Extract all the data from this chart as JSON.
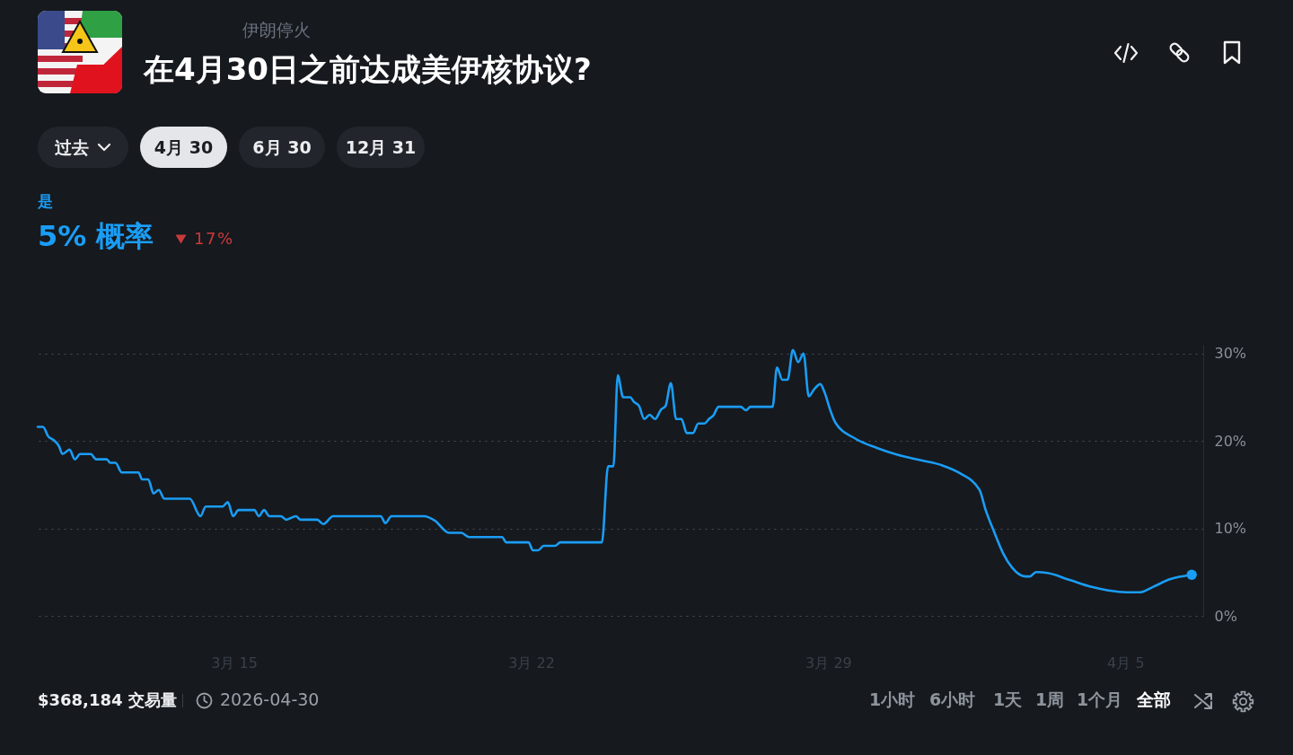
{
  "chart_data": {
    "type": "line",
    "title": "在4月30日之前达成美伊核协议?",
    "annotations": [
      "伊朗停火",
      "过去",
      "4月 30",
      "6月 30",
      "12月 31",
      "是",
      "5% 概率",
      "17%",
      "$368,184 交易量",
      "2026-04-30",
      "1小时",
      "6小时",
      "1天",
      "1周",
      "1个月",
      "全部"
    ],
    "xlim": [
      "2026-03-10T09:00",
      "2026-04-06T20:00"
    ],
    "xticks": [
      {
        "value": "2026-03-15",
        "label": "3月 15"
      },
      {
        "value": "2026-03-22",
        "label": "3月 22"
      },
      {
        "value": "2026-03-29",
        "label": "3月 29"
      },
      {
        "value": "2026-04-05",
        "label": "4月 5"
      }
    ],
    "ylim": [
      0,
      31
    ],
    "yticks": [
      {
        "value": 0,
        "label": "0%"
      },
      {
        "value": 10,
        "label": "10%"
      },
      {
        "value": 20,
        "label": "20%"
      },
      {
        "value": 30,
        "label": "30%"
      }
    ],
    "grid": "y",
    "series": [
      {
        "color": "#1a9df5",
        "x": [
          "2026-03-10T09:00",
          "2026-03-10T12:00",
          "2026-03-10T15:00",
          "2026-03-10T18:00",
          "2026-03-10T21:00",
          "2026-03-10T23:00",
          "2026-03-11T03:00",
          "2026-03-11T06:00",
          "2026-03-11T09:00",
          "2026-03-11T15:00",
          "2026-03-11T18:00",
          "2026-03-12T00:00",
          "2026-03-12T02:00",
          "2026-03-12T05:00",
          "2026-03-12T08:30",
          "2026-03-12T18:00",
          "2026-03-12T20:00",
          "2026-03-12T23:30",
          "2026-03-13T02:30",
          "2026-03-13T05:30",
          "2026-03-13T08:30",
          "2026-03-13T23:00",
          "2026-03-14T05:00",
          "2026-03-14T08:00",
          "2026-03-14T17:30",
          "2026-03-14T20:30",
          "2026-03-14T23:30",
          "2026-03-15T02:30",
          "2026-03-15T11:30",
          "2026-03-15T14:00",
          "2026-03-15T17:00",
          "2026-03-15T20:00",
          "2026-03-16T02:30",
          "2026-03-16T05:30",
          "2026-03-16T11:00",
          "2026-03-16T13:30",
          "2026-03-16T23:00",
          "2026-03-17T02:30",
          "2026-03-17T08:00",
          "2026-03-18T11:00",
          "2026-03-18T13:30",
          "2026-03-18T17:00",
          "2026-03-19T11:30",
          "2026-03-19T17:30",
          "2026-03-20T01:30",
          "2026-03-20T08:30",
          "2026-03-20T13:00",
          "2026-03-21T07:30",
          "2026-03-21T10:00",
          "2026-03-21T22:30",
          "2026-03-22T01:00",
          "2026-03-22T04:00",
          "2026-03-22T07:00",
          "2026-03-22T13:30",
          "2026-03-22T16:30",
          "2026-03-23T16:00",
          "2026-03-23T19:30",
          "2026-03-23T22:30",
          "2026-03-24T01:00",
          "2026-03-24T04:00",
          "2026-03-24T08:00",
          "2026-03-24T10:00",
          "2026-03-24T13:00",
          "2026-03-24T16:00",
          "2026-03-24T19:00",
          "2026-03-24T22:00",
          "2026-03-25T01:30",
          "2026-03-25T04:00",
          "2026-03-25T07:00",
          "2026-03-25T10:00",
          "2026-03-25T13:00",
          "2026-03-25T16:00",
          "2026-03-25T19:30",
          "2026-03-25T22:30",
          "2026-03-26T02:00",
          "2026-03-26T04:30",
          "2026-03-26T07:00",
          "2026-03-26T10:00",
          "2026-03-26T22:30",
          "2026-03-27T01:30",
          "2026-03-27T04:00",
          "2026-03-27T16:30",
          "2026-03-27T19:00",
          "2026-03-27T22:00",
          "2026-03-28T01:00",
          "2026-03-28T04:00",
          "2026-03-28T07:00",
          "2026-03-28T10:00",
          "2026-03-28T13:00",
          "2026-03-28T16:00",
          "2026-03-28T19:30",
          "2026-03-28T22:00",
          "2026-03-29T01:00",
          "2026-03-29T04:00",
          "2026-03-29T15:00",
          "2026-03-30T03:30",
          "2026-03-30T15:30",
          "2026-03-31T04:00",
          "2026-03-31T16:30",
          "2026-04-01T02:30",
          "2026-04-01T13:30",
          "2026-04-01T17:00",
          "2026-04-01T22:00",
          "2026-04-02T03:00",
          "2026-04-02T08:00",
          "2026-04-02T15:30",
          "2026-04-02T18:00",
          "2026-04-02T21:30",
          "2026-04-03T04:00",
          "2026-04-03T16:30",
          "2026-04-04T05:00",
          "2026-04-04T14:30",
          "2026-04-05T00:30",
          "2026-04-05T08:30",
          "2026-04-05T15:30",
          "2026-04-06T01:30",
          "2026-04-06T13:30"
        ],
        "values": [
          21.6,
          21.6,
          20.5,
          20.1,
          19.4,
          18.5,
          19.0,
          17.9,
          18.5,
          18.5,
          17.9,
          17.9,
          17.5,
          17.5,
          16.4,
          16.4,
          15.6,
          15.6,
          14.0,
          14.4,
          13.4,
          13.4,
          11.4,
          12.5,
          12.5,
          13.0,
          11.4,
          12.1,
          12.1,
          11.4,
          12.1,
          11.4,
          11.4,
          11.0,
          11.4,
          11.0,
          11.0,
          10.5,
          11.4,
          11.4,
          10.6,
          11.4,
          11.4,
          10.9,
          9.5,
          9.5,
          9.0,
          9.0,
          8.4,
          8.4,
          7.5,
          7.5,
          8.0,
          8.0,
          8.4,
          8.4,
          17.1,
          17.1,
          27.5,
          25.0,
          25.0,
          24.5,
          24.0,
          22.5,
          23.0,
          22.5,
          23.6,
          24.0,
          26.6,
          22.5,
          22.5,
          20.9,
          20.9,
          22.0,
          22.0,
          22.5,
          22.9,
          23.9,
          23.9,
          23.5,
          23.9,
          23.9,
          28.4,
          27.0,
          27.0,
          30.4,
          29.0,
          30.0,
          25.1,
          25.9,
          26.5,
          25.5,
          23.6,
          22.1,
          20.3,
          19.2,
          18.4,
          17.8,
          17.2,
          16.3,
          14.4,
          12.1,
          9.5,
          7.1,
          5.5,
          4.5,
          4.5,
          5.0,
          4.9,
          4.1,
          3.3,
          2.9,
          2.7,
          2.7,
          3.3,
          4.2,
          4.7
        ]
      },
      {
        "type": "scatter",
        "color": "#1a9df5",
        "marker": "circle",
        "x": [
          "2026-04-06T13:30"
        ],
        "values": [
          4.7
        ]
      }
    ]
  }
}
